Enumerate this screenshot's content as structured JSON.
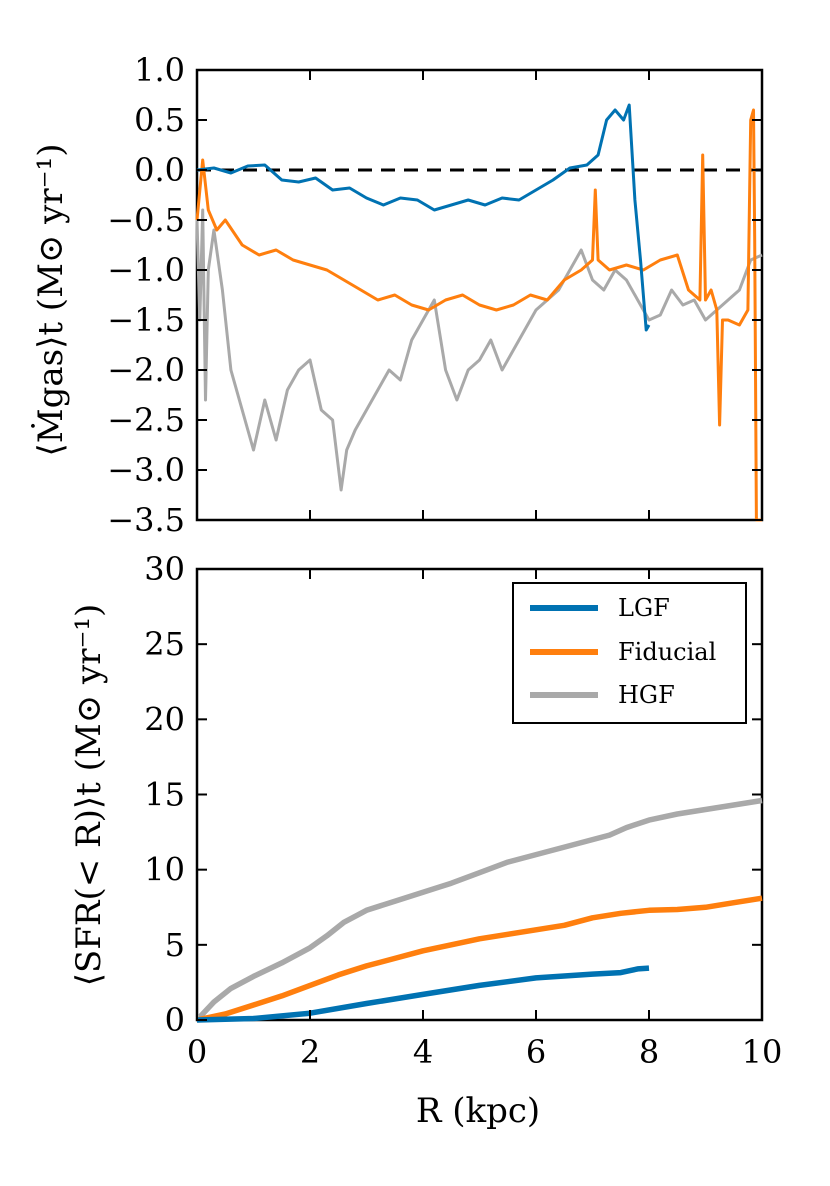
{
  "chart_data": [
    {
      "panel": "top",
      "type": "line",
      "ylabel": "⟨Ṁgas⟩t  (M⊙ yr⁻¹)",
      "xlabel": "",
      "xlim": [
        0,
        10
      ],
      "ylim": [
        -3.5,
        1.0
      ],
      "yticks": [
        "1.0",
        "0.5",
        "0.0",
        "−0.5",
        "−1.0",
        "−1.5",
        "−2.0",
        "−2.5",
        "−3.0",
        "−3.5"
      ],
      "reference_line": {
        "y": 0.0,
        "style": "dashed"
      },
      "series": [
        {
          "name": "LGF",
          "color": "#0072b2",
          "x": [
            0.0,
            0.3,
            0.6,
            0.9,
            1.2,
            1.5,
            1.8,
            2.1,
            2.4,
            2.7,
            3.0,
            3.3,
            3.6,
            3.9,
            4.2,
            4.5,
            4.8,
            5.1,
            5.4,
            5.7,
            6.0,
            6.3,
            6.6,
            6.9,
            7.1,
            7.25,
            7.4,
            7.55,
            7.65,
            7.75,
            7.85,
            7.95,
            8.0
          ],
          "y": [
            0.0,
            0.02,
            -0.03,
            0.04,
            0.05,
            -0.1,
            -0.12,
            -0.08,
            -0.2,
            -0.18,
            -0.28,
            -0.35,
            -0.28,
            -0.3,
            -0.4,
            -0.35,
            -0.3,
            -0.35,
            -0.28,
            -0.3,
            -0.2,
            -0.1,
            0.02,
            0.05,
            0.15,
            0.5,
            0.6,
            0.5,
            0.65,
            -0.3,
            -0.9,
            -1.6,
            -1.55
          ]
        },
        {
          "name": "Fiducial",
          "color": "#ff7f0e",
          "x": [
            0.0,
            0.1,
            0.2,
            0.35,
            0.5,
            0.8,
            1.1,
            1.4,
            1.7,
            2.0,
            2.3,
            2.6,
            2.9,
            3.2,
            3.5,
            3.8,
            4.1,
            4.4,
            4.7,
            5.0,
            5.3,
            5.6,
            5.9,
            6.2,
            6.5,
            6.8,
            7.0,
            7.05,
            7.1,
            7.3,
            7.6,
            7.9,
            8.2,
            8.5,
            8.7,
            8.9,
            8.95,
            9.0,
            9.1,
            9.2,
            9.25,
            9.3,
            9.4,
            9.6,
            9.75,
            9.8,
            9.85,
            9.87,
            9.9,
            10.0
          ],
          "y": [
            -0.5,
            0.1,
            -0.4,
            -0.6,
            -0.5,
            -0.75,
            -0.85,
            -0.8,
            -0.9,
            -0.95,
            -1.0,
            -1.1,
            -1.2,
            -1.3,
            -1.25,
            -1.35,
            -1.4,
            -1.3,
            -1.25,
            -1.35,
            -1.4,
            -1.35,
            -1.25,
            -1.3,
            -1.1,
            -1.0,
            -0.9,
            -0.2,
            -0.9,
            -1.0,
            -0.95,
            -1.0,
            -0.9,
            -0.85,
            -1.2,
            -1.3,
            0.15,
            -1.3,
            -1.2,
            -1.4,
            -2.55,
            -1.5,
            -1.5,
            -1.55,
            -1.4,
            0.5,
            0.6,
            -0.7,
            -3.5,
            -3.5
          ]
        },
        {
          "name": "HGF",
          "color": "#a9a9a9",
          "x": [
            0.0,
            0.05,
            0.1,
            0.15,
            0.2,
            0.3,
            0.45,
            0.6,
            0.8,
            1.0,
            1.2,
            1.4,
            1.6,
            1.8,
            2.0,
            2.2,
            2.4,
            2.55,
            2.65,
            2.8,
            3.0,
            3.2,
            3.4,
            3.6,
            3.8,
            4.0,
            4.2,
            4.4,
            4.6,
            4.8,
            5.0,
            5.2,
            5.4,
            5.6,
            5.8,
            6.0,
            6.2,
            6.4,
            6.6,
            6.8,
            7.0,
            7.2,
            7.4,
            7.6,
            7.8,
            8.0,
            8.2,
            8.4,
            8.6,
            8.8,
            9.0,
            9.2,
            9.4,
            9.6,
            9.8,
            10.0
          ],
          "y": [
            -0.5,
            -1.5,
            -0.4,
            -2.3,
            -1.0,
            -0.6,
            -1.2,
            -2.0,
            -2.4,
            -2.8,
            -2.3,
            -2.7,
            -2.2,
            -2.0,
            -1.9,
            -2.4,
            -2.5,
            -3.2,
            -2.8,
            -2.6,
            -2.4,
            -2.2,
            -2.0,
            -2.1,
            -1.7,
            -1.5,
            -1.3,
            -2.0,
            -2.3,
            -2.0,
            -1.9,
            -1.7,
            -2.0,
            -1.8,
            -1.6,
            -1.4,
            -1.3,
            -1.2,
            -1.0,
            -0.8,
            -1.1,
            -1.2,
            -1.0,
            -1.1,
            -1.3,
            -1.5,
            -1.45,
            -1.2,
            -1.35,
            -1.3,
            -1.5,
            -1.4,
            -1.3,
            -1.2,
            -0.9,
            -0.85
          ]
        }
      ]
    },
    {
      "panel": "bottom",
      "type": "line",
      "ylabel": "⟨SFR(< R)⟩t  (M⊙ yr⁻¹)",
      "xlabel": "R  (kpc)",
      "xlim": [
        0,
        10
      ],
      "ylim": [
        0,
        30
      ],
      "xticks": [
        "0",
        "2",
        "4",
        "6",
        "8",
        "10"
      ],
      "yticks": [
        "30",
        "25",
        "20",
        "15",
        "10",
        "5",
        "0"
      ],
      "legend": {
        "placement": "top-right",
        "entries": [
          "LGF",
          "Fiducial",
          "HGF"
        ]
      },
      "series": [
        {
          "name": "LGF",
          "color": "#0072b2",
          "x": [
            0,
            1,
            2,
            3,
            4,
            5,
            6,
            7,
            7.5,
            7.8,
            8.0
          ],
          "y": [
            0,
            0.1,
            0.45,
            1.1,
            1.7,
            2.3,
            2.8,
            3.05,
            3.15,
            3.4,
            3.45
          ]
        },
        {
          "name": "Fiducial",
          "color": "#ff7f0e",
          "x": [
            0,
            0.5,
            1,
            1.5,
            2,
            2.5,
            3,
            3.5,
            4,
            4.5,
            5,
            5.5,
            6,
            6.5,
            7,
            7.5,
            8,
            8.5,
            9,
            9.5,
            10
          ],
          "y": [
            0,
            0.4,
            1.0,
            1.6,
            2.3,
            3.0,
            3.6,
            4.1,
            4.6,
            5.0,
            5.4,
            5.7,
            6.0,
            6.3,
            6.8,
            7.1,
            7.3,
            7.35,
            7.5,
            7.8,
            8.1
          ]
        },
        {
          "name": "HGF",
          "color": "#a9a9a9",
          "x": [
            0,
            0.3,
            0.6,
            1,
            1.5,
            2,
            2.3,
            2.6,
            3,
            3.5,
            4,
            4.5,
            5,
            5.5,
            6,
            6.5,
            7,
            7.3,
            7.6,
            8,
            8.5,
            9,
            9.5,
            10
          ],
          "y": [
            0,
            1.2,
            2.1,
            2.9,
            3.8,
            4.8,
            5.6,
            6.5,
            7.3,
            7.9,
            8.5,
            9.1,
            9.8,
            10.5,
            11.0,
            11.5,
            12.0,
            12.3,
            12.8,
            13.3,
            13.7,
            14.0,
            14.3,
            14.6
          ]
        }
      ]
    }
  ]
}
